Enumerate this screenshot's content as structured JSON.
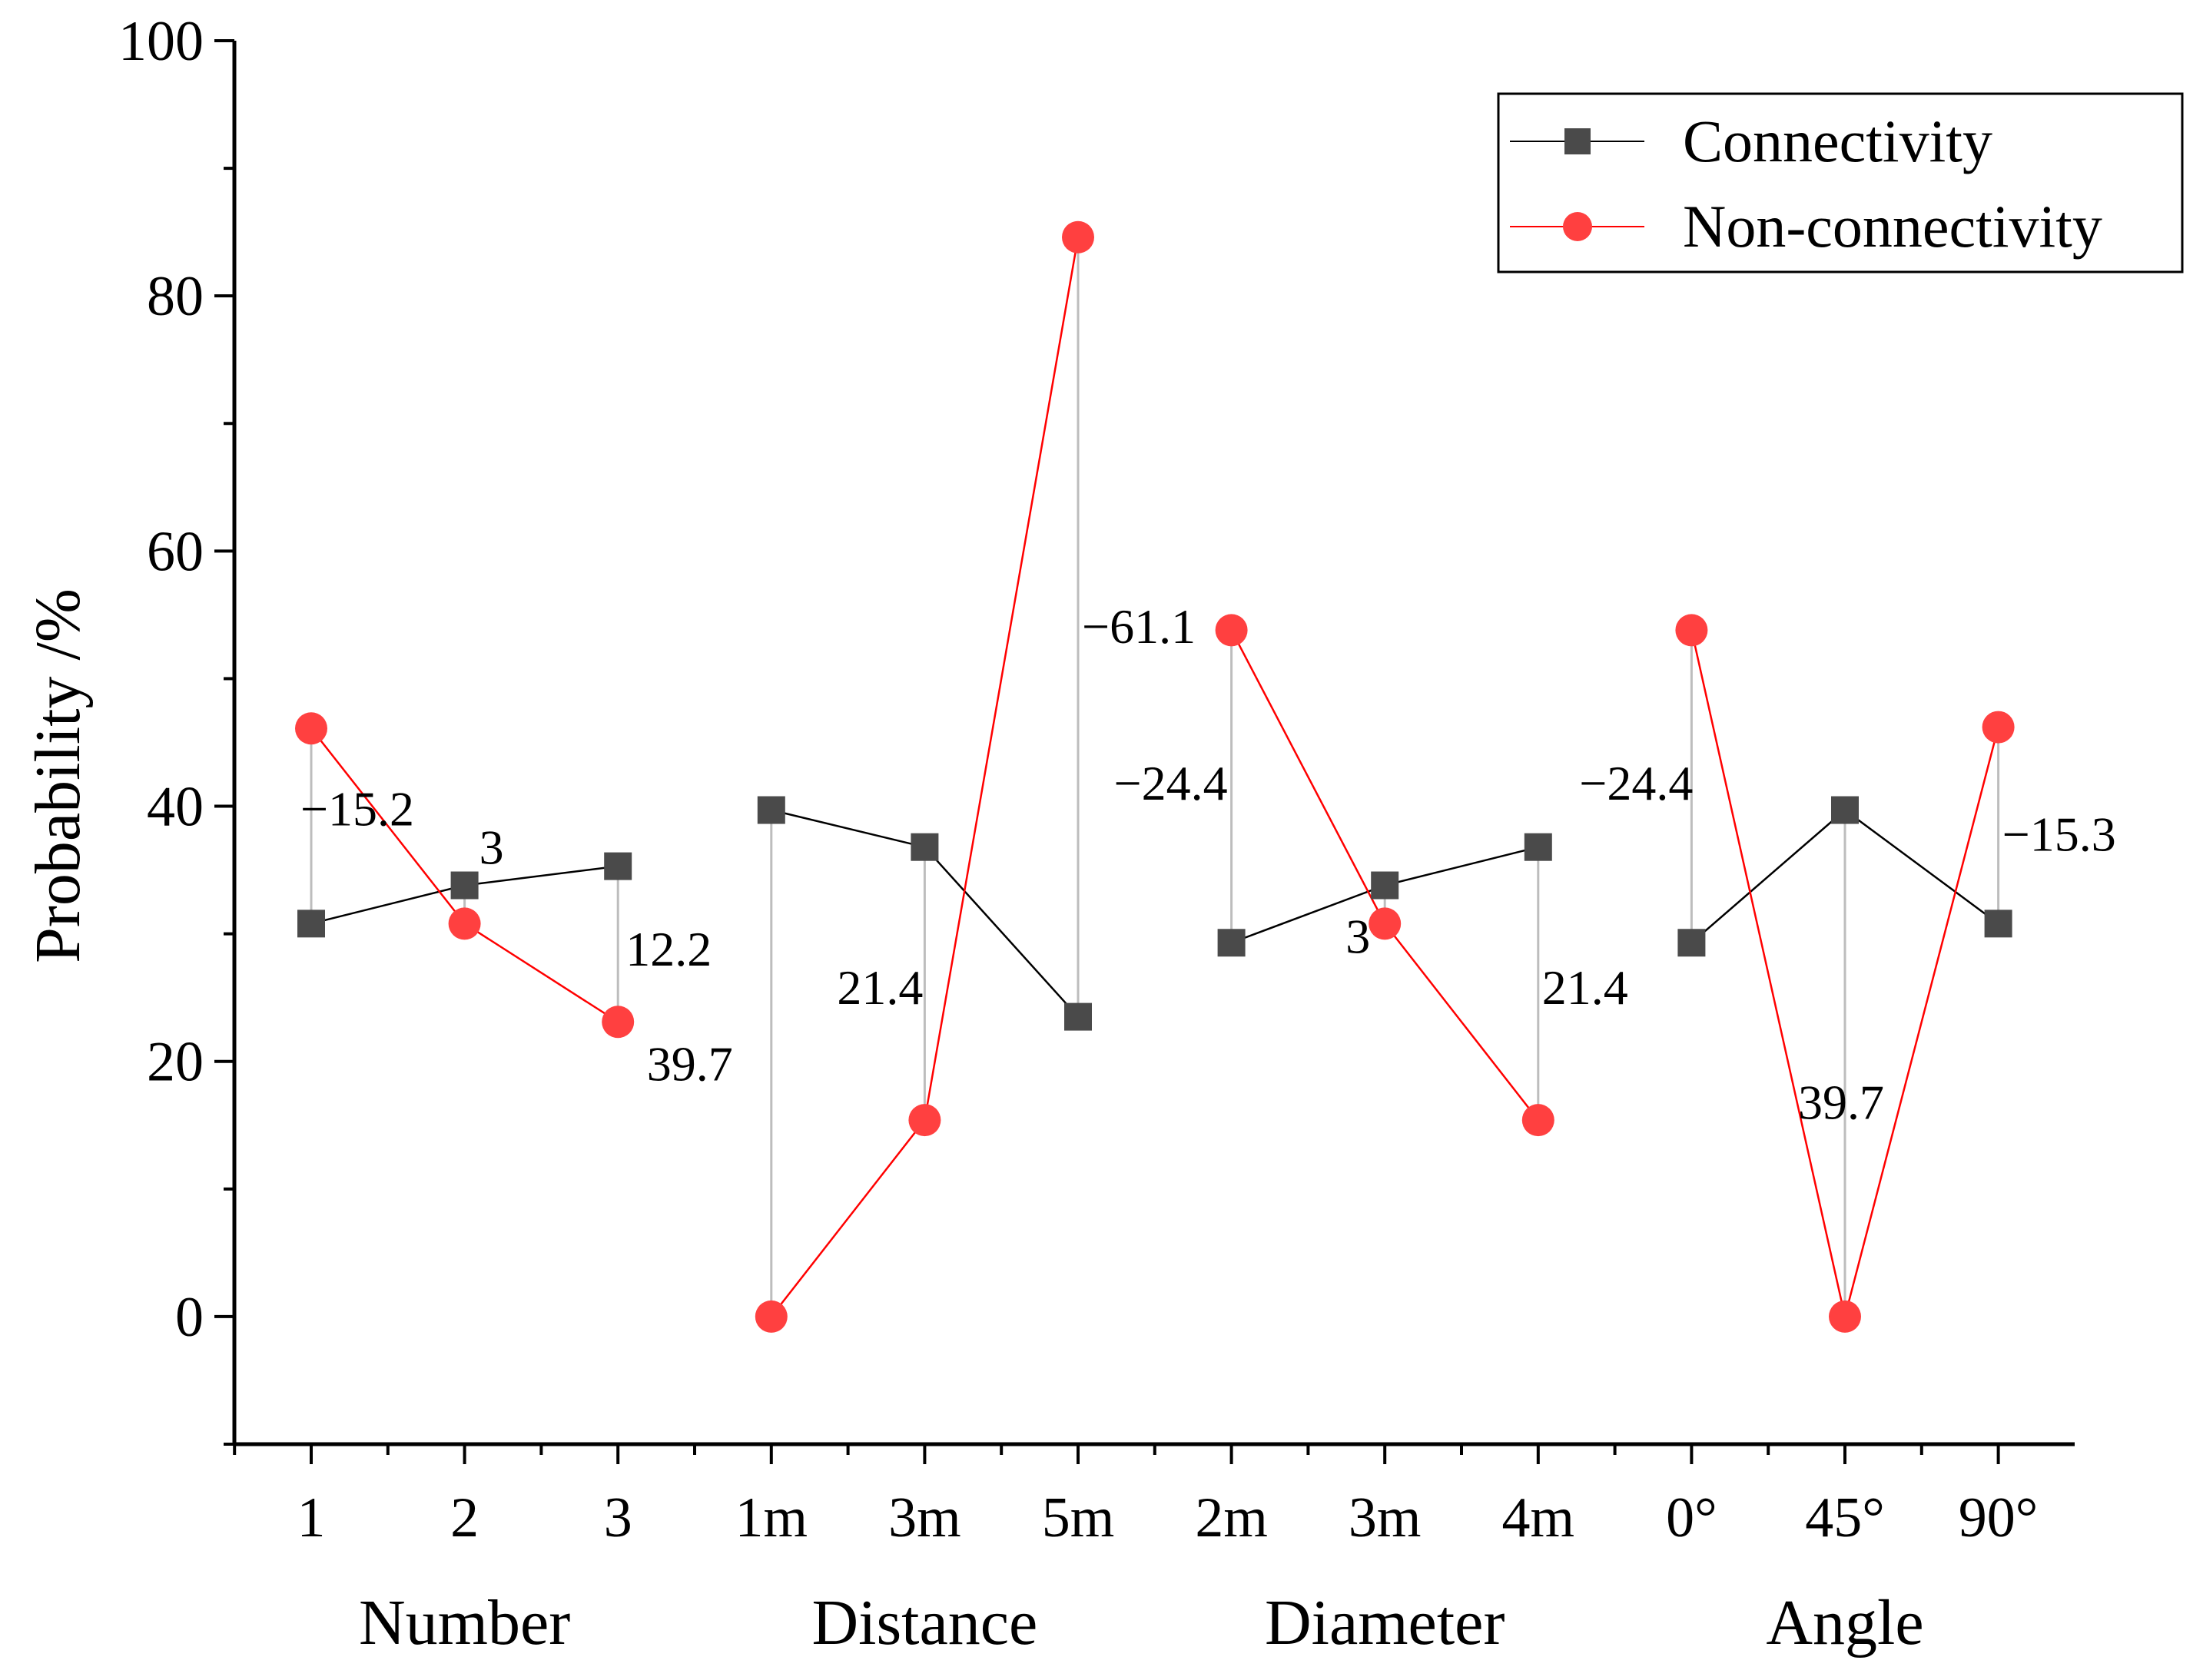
{
  "chart_data": {
    "type": "line",
    "title": "",
    "xlabel": "",
    "ylabel": "Probability /%",
    "ylim": [
      -10,
      100
    ],
    "yticks": [
      0,
      20,
      40,
      60,
      80,
      100
    ],
    "grid": false,
    "legend_position": "top-right",
    "categories": [
      "1",
      "2",
      "3",
      "1m",
      "3m",
      "5m",
      "2m",
      "3m",
      "4m",
      "0°",
      "45°",
      "90°"
    ],
    "groups": [
      {
        "name": "Number",
        "start": 0,
        "end": 2
      },
      {
        "name": "Distance",
        "start": 3,
        "end": 5
      },
      {
        "name": "Diameter",
        "start": 6,
        "end": 8
      },
      {
        "name": "Angle",
        "start": 9,
        "end": 11
      }
    ],
    "series": [
      {
        "name": "Connectivity",
        "color": "#4a4a4a",
        "line_color": "#000000",
        "marker": "square",
        "values": [
          30.8,
          33.8,
          35.3,
          39.7,
          36.8,
          23.5,
          29.3,
          33.8,
          36.8,
          29.3,
          39.7,
          30.8
        ]
      },
      {
        "name": "Non-connectivity",
        "color": "#ff4040",
        "line_color": "#ff0000",
        "marker": "circle",
        "values": [
          46.1,
          30.8,
          23.1,
          0,
          15.4,
          84.6,
          53.8,
          30.8,
          15.4,
          53.8,
          0,
          46.2
        ]
      }
    ],
    "difference_labels": [
      {
        "index": 0,
        "text": "−15.2"
      },
      {
        "index": 1,
        "text": "3"
      },
      {
        "index": 2,
        "text": "12.2"
      },
      {
        "index": 3,
        "text": "39.7"
      },
      {
        "index": 4,
        "text": "21.4"
      },
      {
        "index": 5,
        "text": "−61.1"
      },
      {
        "index": 6,
        "text": "−24.4"
      },
      {
        "index": 7,
        "text": "3"
      },
      {
        "index": 8,
        "text": "21.4"
      },
      {
        "index": 9,
        "text": "−24.4"
      },
      {
        "index": 10,
        "text": "39.7"
      },
      {
        "index": 11,
        "text": "−15.3"
      }
    ]
  }
}
